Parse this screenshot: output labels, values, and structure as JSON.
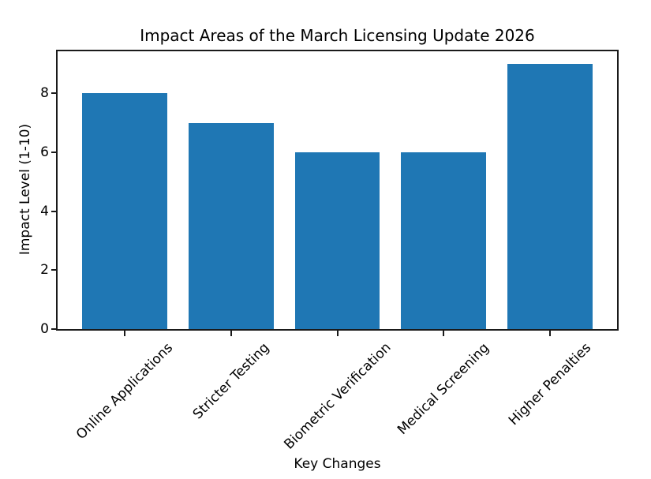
{
  "chart_data": {
    "type": "bar",
    "title": "Impact Areas of the March Licensing Update 2026",
    "xlabel": "Key Changes",
    "ylabel": "Impact Level (1-10)",
    "categories": [
      "Online Applications",
      "Stricter Testing",
      "Biometric Verification",
      "Medical Screening",
      "Higher Penalties"
    ],
    "values": [
      8,
      7,
      6,
      6,
      9
    ],
    "yticks": [
      0,
      2,
      4,
      6,
      8
    ],
    "ylim": [
      0,
      9.45
    ],
    "xtick_rotation_deg": 45,
    "bar_color": "#1f77b4",
    "axis_color": "#1a1a1a",
    "background_color": "#ffffff",
    "grid": false,
    "legend": null
  }
}
